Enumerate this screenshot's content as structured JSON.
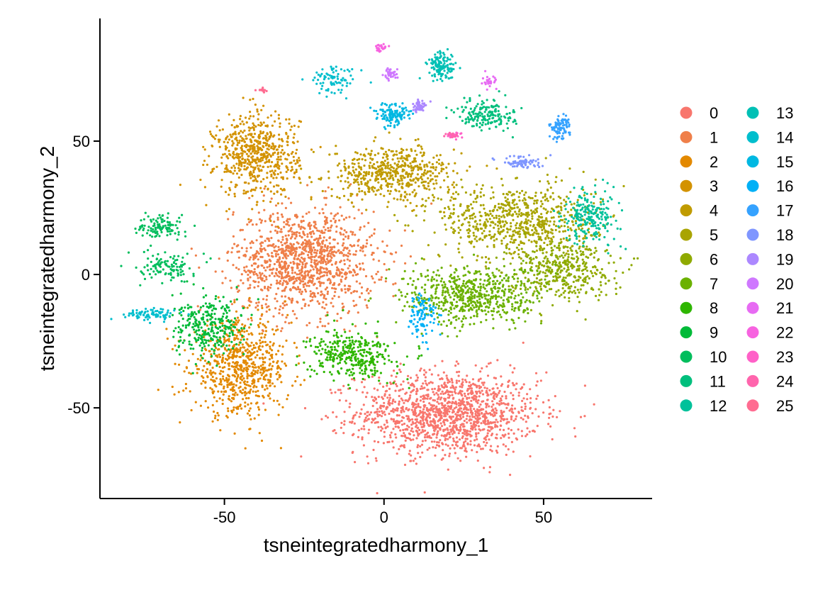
{
  "chart_data": {
    "type": "scatter",
    "title": "",
    "xlabel": "tsneintegratedharmony_1",
    "ylabel": "tsneintegratedharmony_2",
    "xlim": [
      -89,
      84
    ],
    "ylim": [
      -84,
      96
    ],
    "x_ticks": [
      -50,
      0,
      50
    ],
    "x_tick_labels": [
      "-50",
      "0",
      "50"
    ],
    "y_ticks": [
      -50,
      0,
      50
    ],
    "y_tick_labels": [
      "-50",
      "0",
      "50"
    ],
    "grid": false,
    "legend_position": "right",
    "legend_columns": 2,
    "series": [
      {
        "name": "0",
        "color": "#F8766D",
        "centroid": [
          20,
          -52
        ],
        "size": 1400,
        "blobs": [
          [
            20,
            -52,
            26,
            14
          ]
        ]
      },
      {
        "name": "1",
        "color": "#EF7F49",
        "centroid": [
          -25,
          5
        ],
        "size": 1200,
        "blobs": [
          [
            -25,
            5,
            20,
            18
          ]
        ]
      },
      {
        "name": "2",
        "color": "#E38900",
        "centroid": [
          -45,
          -35
        ],
        "size": 700,
        "blobs": [
          [
            -45,
            -35,
            14,
            16
          ]
        ]
      },
      {
        "name": "3",
        "color": "#D39200",
        "centroid": [
          -40,
          45
        ],
        "size": 600,
        "blobs": [
          [
            -40,
            45,
            12,
            14
          ]
        ]
      },
      {
        "name": "4",
        "color": "#C09B00",
        "centroid": [
          3,
          38
        ],
        "size": 550,
        "blobs": [
          [
            3,
            38,
            18,
            9
          ]
        ]
      },
      {
        "name": "5",
        "color": "#A9A400",
        "centroid": [
          42,
          20
        ],
        "size": 700,
        "blobs": [
          [
            42,
            20,
            22,
            13
          ]
        ]
      },
      {
        "name": "6",
        "color": "#8FAA00",
        "centroid": [
          55,
          2
        ],
        "size": 400,
        "blobs": [
          [
            55,
            2,
            15,
            10
          ]
        ]
      },
      {
        "name": "7",
        "color": "#6BB100",
        "centroid": [
          28,
          -8
        ],
        "size": 600,
        "blobs": [
          [
            28,
            -8,
            20,
            10
          ]
        ]
      },
      {
        "name": "8",
        "color": "#2EB600",
        "centroid": [
          -10,
          -30
        ],
        "size": 350,
        "blobs": [
          [
            -10,
            -30,
            12,
            8
          ]
        ]
      },
      {
        "name": "9",
        "color": "#00BA38",
        "centroid": [
          -55,
          -20
        ],
        "size": 300,
        "blobs": [
          [
            -55,
            -20,
            10,
            10
          ]
        ]
      },
      {
        "name": "10",
        "color": "#00BD5C",
        "centroid": [
          -70,
          15
        ],
        "size": 220,
        "blobs": [
          [
            -70,
            18,
            6,
            4
          ],
          [
            -68,
            3,
            8,
            5
          ]
        ]
      },
      {
        "name": "11",
        "color": "#00BF7D",
        "centroid": [
          32,
          60
        ],
        "size": 180,
        "blobs": [
          [
            32,
            60,
            8,
            5
          ]
        ]
      },
      {
        "name": "12",
        "color": "#00C19A",
        "centroid": [
          65,
          22
        ],
        "size": 220,
        "blobs": [
          [
            65,
            22,
            8,
            9
          ]
        ]
      },
      {
        "name": "13",
        "color": "#00C0B5",
        "centroid": [
          18,
          78
        ],
        "size": 130,
        "blobs": [
          [
            18,
            78,
            4,
            5
          ]
        ]
      },
      {
        "name": "14",
        "color": "#00BECD",
        "centroid": [
          -15,
          73
        ],
        "size": 160,
        "blobs": [
          [
            -15,
            73,
            7,
            5
          ],
          [
            -73,
            -15,
            7,
            2
          ]
        ]
      },
      {
        "name": "15",
        "color": "#00B8E2",
        "centroid": [
          3,
          60
        ],
        "size": 120,
        "blobs": [
          [
            3,
            60,
            5,
            4
          ]
        ]
      },
      {
        "name": "16",
        "color": "#00B0F6",
        "centroid": [
          12,
          -15
        ],
        "size": 100,
        "blobs": [
          [
            12,
            -15,
            4,
            8
          ]
        ]
      },
      {
        "name": "17",
        "color": "#35A2FF",
        "centroid": [
          55,
          55
        ],
        "size": 90,
        "blobs": [
          [
            55,
            55,
            3,
            4
          ]
        ]
      },
      {
        "name": "18",
        "color": "#7F96FF",
        "centroid": [
          43,
          42
        ],
        "size": 70,
        "blobs": [
          [
            43,
            42,
            6,
            2
          ]
        ]
      },
      {
        "name": "19",
        "color": "#AC88FF",
        "centroid": [
          11,
          63
        ],
        "size": 50,
        "blobs": [
          [
            11,
            63,
            2,
            2
          ]
        ]
      },
      {
        "name": "20",
        "color": "#CF78FF",
        "centroid": [
          2,
          75
        ],
        "size": 40,
        "blobs": [
          [
            2,
            75,
            2,
            2
          ]
        ]
      },
      {
        "name": "21",
        "color": "#E76BF3",
        "centroid": [
          33,
          72
        ],
        "size": 30,
        "blobs": [
          [
            33,
            72,
            2,
            2
          ]
        ]
      },
      {
        "name": "22",
        "color": "#F763E0",
        "centroid": [
          -1,
          85
        ],
        "size": 25,
        "blobs": [
          [
            -1,
            85,
            1.5,
            1.5
          ]
        ]
      },
      {
        "name": "23",
        "color": "#FF61C8",
        "centroid": [
          22,
          52
        ],
        "size": 25,
        "blobs": [
          [
            22,
            52,
            3,
            1
          ]
        ]
      },
      {
        "name": "24",
        "color": "#FF65AD",
        "centroid": [
          21,
          52
        ],
        "size": 15,
        "blobs": [
          [
            21,
            52,
            1.5,
            1
          ]
        ]
      },
      {
        "name": "25",
        "color": "#FF6C91",
        "centroid": [
          -38,
          69
        ],
        "size": 15,
        "blobs": [
          [
            -38,
            69,
            1.5,
            1
          ]
        ]
      }
    ]
  }
}
